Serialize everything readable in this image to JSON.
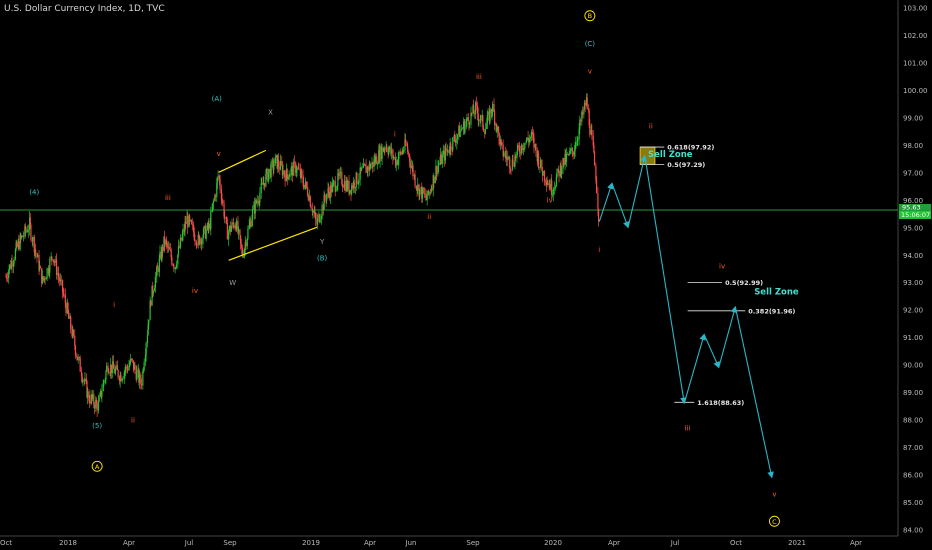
{
  "header": {
    "title": "U.S. Dollar Currency Index, 1D, TVC"
  },
  "price_badge": {
    "price": "95.63",
    "countdown": "15:06:07"
  },
  "chart_data": {
    "type": "candlestick",
    "instrument": "U.S. Dollar Currency Index",
    "interval": "1D",
    "source": "TVC",
    "x_axis": {
      "ticks": [
        "Oct",
        "2018",
        "Apr",
        "Jul",
        "Sep",
        "2019",
        "Apr",
        "Jun",
        "Sep",
        "2020",
        "Apr",
        "Jul",
        "Oct",
        "2021",
        "Apr"
      ]
    },
    "y_axis": {
      "range": [
        84,
        103
      ],
      "ticks": [
        "103.00",
        "102.00",
        "101.00",
        "100.00",
        "99.00",
        "98.00",
        "97.00",
        "96.00",
        "95.00",
        "94.00",
        "93.00",
        "92.00",
        "91.00",
        "90.00",
        "89.00",
        "88.00",
        "87.00",
        "86.00",
        "85.00",
        "84.00"
      ]
    },
    "price_path": [
      [
        "2017-10-01",
        93.2
      ],
      [
        "2017-10-20",
        94.4
      ],
      [
        "2017-11-05",
        95.1
      ],
      [
        "2017-11-25",
        93.0
      ],
      [
        "2017-12-10",
        94.0
      ],
      [
        "2017-12-28",
        92.3
      ],
      [
        "2018-01-15",
        90.3
      ],
      [
        "2018-02-01",
        88.8
      ],
      [
        "2018-02-15",
        88.5
      ],
      [
        "2018-03-01",
        90.0
      ],
      [
        "2018-03-20",
        89.6
      ],
      [
        "2018-04-05",
        90.1
      ],
      [
        "2018-04-20",
        89.3
      ],
      [
        "2018-05-05",
        92.5
      ],
      [
        "2018-05-25",
        94.5
      ],
      [
        "2018-06-10",
        93.6
      ],
      [
        "2018-06-28",
        95.3
      ],
      [
        "2018-07-15",
        94.5
      ],
      [
        "2018-08-01",
        95.0
      ],
      [
        "2018-08-15",
        96.9
      ],
      [
        "2018-08-28",
        94.8
      ],
      [
        "2018-09-10",
        95.2
      ],
      [
        "2018-09-20",
        94.0
      ],
      [
        "2018-10-05",
        95.5
      ],
      [
        "2018-10-25",
        96.8
      ],
      [
        "2018-11-10",
        97.4
      ],
      [
        "2018-11-25",
        96.9
      ],
      [
        "2018-12-10",
        97.2
      ],
      [
        "2018-12-28",
        96.3
      ],
      [
        "2019-01-10",
        95.1
      ],
      [
        "2019-01-25",
        96.2
      ],
      [
        "2019-02-15",
        96.8
      ],
      [
        "2019-03-01",
        96.4
      ],
      [
        "2019-03-20",
        97.0
      ],
      [
        "2019-04-05",
        97.3
      ],
      [
        "2019-04-25",
        98.0
      ],
      [
        "2019-05-10",
        97.4
      ],
      [
        "2019-05-25",
        98.0
      ],
      [
        "2019-06-10",
        96.5
      ],
      [
        "2019-06-25",
        96.0
      ],
      [
        "2019-07-10",
        97.2
      ],
      [
        "2019-07-25",
        97.8
      ],
      [
        "2019-08-10",
        98.4
      ],
      [
        "2019-08-25",
        98.9
      ],
      [
        "2019-09-05",
        99.3
      ],
      [
        "2019-09-20",
        98.6
      ],
      [
        "2019-10-01",
        99.4
      ],
      [
        "2019-10-15",
        97.8
      ],
      [
        "2019-10-30",
        97.3
      ],
      [
        "2019-11-15",
        98.0
      ],
      [
        "2019-11-30",
        98.3
      ],
      [
        "2019-12-15",
        97.1
      ],
      [
        "2019-12-31",
        96.4
      ],
      [
        "2020-01-15",
        97.3
      ],
      [
        "2020-02-01",
        97.8
      ],
      [
        "2020-02-20",
        99.6
      ],
      [
        "2020-02-25",
        98.8
      ],
      [
        "2020-03-05",
        97.0
      ],
      [
        "2020-03-10",
        95.2
      ]
    ],
    "projection": [
      [
        "2020-03-10",
        95.2
      ],
      [
        "2020-03-29",
        96.6
      ],
      [
        "2020-04-22",
        95.0
      ],
      [
        "2020-05-17",
        97.6
      ],
      [
        "2020-07-15",
        88.6
      ],
      [
        "2020-08-14",
        91.1
      ],
      [
        "2020-09-05",
        89.9
      ],
      [
        "2020-09-30",
        92.1
      ],
      [
        "2020-11-24",
        85.9
      ]
    ],
    "horizontal_lines": [
      {
        "label": "",
        "y": 95.63,
        "color": "#1f9e3a"
      }
    ],
    "channel_lines": [
      {
        "from": [
          "2018-08-15",
          97.0
        ],
        "to": [
          "2018-10-25",
          97.8
        ],
        "color": "#ffe600"
      },
      {
        "from": [
          "2018-08-30",
          93.8
        ],
        "to": [
          "2019-01-10",
          95.0
        ],
        "color": "#ffe600"
      }
    ],
    "fib_levels": [
      {
        "label": "0.618(97.92)",
        "y": 97.92,
        "from": "2020-05-10",
        "to": "2020-06-15"
      },
      {
        "label": "0.5(97.29)",
        "y": 97.29,
        "from": "2020-05-10",
        "to": "2020-06-15"
      },
      {
        "label": "0.5(92.99)",
        "y": 92.99,
        "from": "2020-07-20",
        "to": "2020-09-10"
      },
      {
        "label": "0.382(91.96)",
        "y": 91.96,
        "from": "2020-07-20",
        "to": "2020-10-15"
      },
      {
        "label": "1.618(88.63)",
        "y": 88.63,
        "from": "2020-06-30",
        "to": "2020-07-30"
      }
    ],
    "sell_zone_box": {
      "from": "2020-05-10",
      "to": "2020-06-01",
      "y_top": 97.92,
      "y_bottom": 97.29
    },
    "annotations": [
      {
        "text": "Sell Zone",
        "x": "2020-06-24",
        "y": 97.55,
        "color": "#3fe0d0",
        "bold": true
      },
      {
        "text": "Sell Zone",
        "x": "2020-12-01",
        "y": 92.55,
        "color": "#3fe0d0",
        "bold": true
      },
      {
        "text": "(4)",
        "x": "2017-11-12",
        "y": 96.2,
        "color": "#2ec4c0"
      },
      {
        "text": "(5)",
        "x": "2018-02-13",
        "y": 87.7,
        "color": "#2ec4c0"
      },
      {
        "text": "(A)",
        "x": "2018-08-12",
        "y": 99.6,
        "color": "#2ec4c0"
      },
      {
        "text": "(B)",
        "x": "2019-01-18",
        "y": 93.8,
        "color": "#2ec4c0"
      },
      {
        "text": "(C)",
        "x": "2020-02-25",
        "y": 101.6,
        "color": "#2ec4c0"
      },
      {
        "text": "X",
        "x": "2018-11-01",
        "y": 99.1,
        "color": "#9a9a9a"
      },
      {
        "text": "W",
        "x": "2018-09-05",
        "y": 92.9,
        "color": "#9a9a9a"
      },
      {
        "text": "Y",
        "x": "2019-01-18",
        "y": 94.4,
        "color": "#9a9a9a"
      },
      {
        "text": "i",
        "x": "2018-03-10",
        "y": 92.1,
        "color": "#ff5a1f"
      },
      {
        "text": "ii",
        "x": "2018-04-07",
        "y": 87.9,
        "color": "#ff5a1f"
      },
      {
        "text": "iii",
        "x": "2018-05-30",
        "y": 96.0,
        "color": "#ff5a1f"
      },
      {
        "text": "iv",
        "x": "2018-07-10",
        "y": 92.6,
        "color": "#ff5a1f"
      },
      {
        "text": "v",
        "x": "2018-08-15",
        "y": 97.6,
        "color": "#ff5a1f"
      },
      {
        "text": "i",
        "x": "2019-05-08",
        "y": 98.3,
        "color": "#ff5a1f"
      },
      {
        "text": "ii",
        "x": "2019-06-28",
        "y": 95.3,
        "color": "#ff5a1f"
      },
      {
        "text": "iii",
        "x": "2019-09-10",
        "y": 100.4,
        "color": "#ff5a1f"
      },
      {
        "text": "iv",
        "x": "2019-12-27",
        "y": 95.9,
        "color": "#ff5a1f"
      },
      {
        "text": "v",
        "x": "2020-02-25",
        "y": 100.6,
        "color": "#ff5a1f"
      },
      {
        "text": "i",
        "x": "2020-03-10",
        "y": 94.1,
        "color": "#ff5a1f"
      },
      {
        "text": "ii",
        "x": "2020-05-26",
        "y": 98.6,
        "color": "#ff5a1f"
      },
      {
        "text": "iii",
        "x": "2020-07-20",
        "y": 87.6,
        "color": "#ff5a1f"
      },
      {
        "text": "iv",
        "x": "2020-09-10",
        "y": 93.5,
        "color": "#ff5a1f"
      },
      {
        "text": "v",
        "x": "2020-11-28",
        "y": 85.2,
        "color": "#ff5a1f"
      }
    ],
    "circled_labels": [
      {
        "text": "A",
        "x": "2018-02-13",
        "y": 86.3,
        "color": "#ffe600"
      },
      {
        "text": "B",
        "x": "2020-02-25",
        "y": 102.7,
        "color": "#ffe600"
      },
      {
        "text": "C",
        "x": "2020-11-28",
        "y": 84.3,
        "color": "#ffe600"
      }
    ],
    "grid": false,
    "colors": {
      "up": "#26c632",
      "down": "#ff4a4a",
      "projection": "#29b6c6",
      "axis_text": "#bbbbbb",
      "background": "#000000"
    }
  }
}
